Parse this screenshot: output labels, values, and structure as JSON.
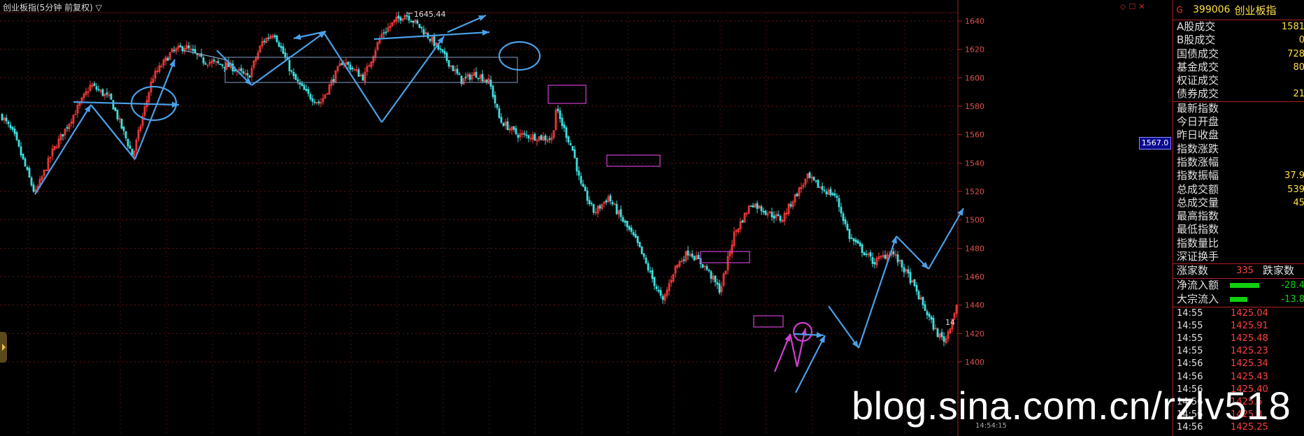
{
  "chart_title": "创业板指(5分钟 前复权) ▽",
  "icons": [
    "diamond-icon",
    "checkbox-icon",
    "close-icon"
  ],
  "chart_data": {
    "type": "candlestick",
    "title": "创业板指(5分钟 前复权)",
    "ylim": [
      1400,
      1648
    ],
    "yticks": [
      "1640",
      "1620",
      "1600",
      "1580",
      "1560",
      "1540",
      "1520",
      "1500",
      "1480",
      "1460",
      "1440",
      "1420",
      "1400"
    ],
    "current_price_label": "1567.0",
    "high_annotation": "1645.44",
    "last_label": "14",
    "time_label": "14:54:15",
    "grid": true,
    "up_color": "#ff3b3b",
    "down_color": "#3fe0e0",
    "close_path": [
      [
        0,
        1575
      ],
      [
        20,
        1560
      ],
      [
        50,
        1518
      ],
      [
        75,
        1548
      ],
      [
        110,
        1578
      ],
      [
        130,
        1595
      ],
      [
        158,
        1585
      ],
      [
        190,
        1545
      ],
      [
        218,
        1600
      ],
      [
        245,
        1618
      ],
      [
        265,
        1622
      ],
      [
        290,
        1612
      ],
      [
        330,
        1608
      ],
      [
        355,
        1600
      ],
      [
        375,
        1625
      ],
      [
        392,
        1632
      ],
      [
        420,
        1600
      ],
      [
        440,
        1588
      ],
      [
        458,
        1582
      ],
      [
        490,
        1612
      ],
      [
        520,
        1600
      ],
      [
        545,
        1630
      ],
      [
        565,
        1640
      ],
      [
        580,
        1645
      ],
      [
        600,
        1636
      ],
      [
        620,
        1625
      ],
      [
        640,
        1612
      ],
      [
        660,
        1598
      ],
      [
        680,
        1603
      ],
      [
        700,
        1597
      ],
      [
        715,
        1570
      ],
      [
        740,
        1560
      ],
      [
        790,
        1557
      ],
      [
        795,
        1578
      ],
      [
        820,
        1548
      ],
      [
        830,
        1525
      ],
      [
        850,
        1505
      ],
      [
        870,
        1516
      ],
      [
        890,
        1500
      ],
      [
        910,
        1485
      ],
      [
        930,
        1462
      ],
      [
        948,
        1442
      ],
      [
        965,
        1466
      ],
      [
        985,
        1478
      ],
      [
        1010,
        1466
      ],
      [
        1030,
        1450
      ],
      [
        1050,
        1490
      ],
      [
        1075,
        1512
      ],
      [
        1095,
        1506
      ],
      [
        1118,
        1500
      ],
      [
        1135,
        1515
      ],
      [
        1155,
        1530
      ],
      [
        1175,
        1522
      ],
      [
        1195,
        1517
      ],
      [
        1215,
        1488
      ],
      [
        1250,
        1470
      ],
      [
        1275,
        1478
      ],
      [
        1300,
        1460
      ],
      [
        1340,
        1420
      ],
      [
        1352,
        1415
      ],
      [
        1368,
        1440
      ]
    ]
  },
  "panel": {
    "marker": "G",
    "code": "399006",
    "name": "创业板指",
    "volume_rows": [
      {
        "label": "A股成交",
        "value": "1581"
      },
      {
        "label": "B股成交",
        "value": "0"
      },
      {
        "label": "国债成交",
        "value": "728"
      },
      {
        "label": "基金成交",
        "value": "80"
      },
      {
        "label": "权证成交",
        "value": ""
      },
      {
        "label": "债券成交",
        "value": "21"
      }
    ],
    "index_rows": [
      {
        "label": "最新指数",
        "value": ""
      },
      {
        "label": "今日开盘",
        "value": ""
      },
      {
        "label": "昨日收盘",
        "value": ""
      },
      {
        "label": "指数涨跌",
        "value": ""
      },
      {
        "label": "指数涨幅",
        "value": ""
      },
      {
        "label": "指数振幅",
        "value": "37.9"
      },
      {
        "label": "总成交额",
        "value": "539"
      },
      {
        "label": "总成交量",
        "value": "45"
      },
      {
        "label": "最高指数",
        "value": ""
      },
      {
        "label": "最低指数",
        "value": ""
      },
      {
        "label": "指数量比",
        "value": ""
      },
      {
        "label": "深证换手",
        "value": ""
      }
    ],
    "updown": {
      "up_label": "涨家数",
      "up_value": "335",
      "down_label": "跌家数"
    },
    "flows": [
      {
        "label": "净流入额",
        "value": "-28.4",
        "bar": 0.75
      },
      {
        "label": "大宗流入",
        "value": "-13.8",
        "bar": 0.45
      }
    ],
    "trades": [
      {
        "time": "14:55",
        "price": "1425.04"
      },
      {
        "time": "14:55",
        "price": "1425.91"
      },
      {
        "time": "14:55",
        "price": "1425.48"
      },
      {
        "time": "14:55",
        "price": "1425.23"
      },
      {
        "time": "14:56",
        "price": "1425.34"
      },
      {
        "time": "14:56",
        "price": "1425.43"
      },
      {
        "time": "14:56",
        "price": "1425.40"
      },
      {
        "time": "14:56",
        "price": "1425.5"
      },
      {
        "time": "14:56",
        "price": "1425.3"
      },
      {
        "time": "14:56",
        "price": "1425.25"
      }
    ]
  },
  "watermark": "blog.sina.com.cn/rzlv518"
}
